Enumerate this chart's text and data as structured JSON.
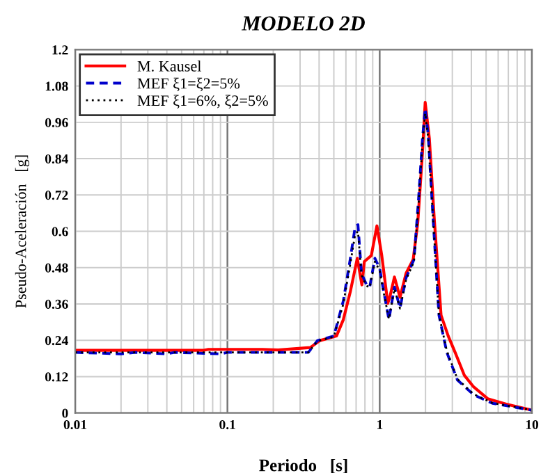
{
  "chart_data": {
    "type": "line",
    "title": "MODELO 2D",
    "xlabel": "Periodo   [s]",
    "ylabel": "Pseudo-Aceleración   [g]",
    "log": "x",
    "xlim": [
      0.01,
      10
    ],
    "xticks": [
      0.01,
      0.1,
      1,
      10
    ],
    "ylim": [
      0,
      1.2
    ],
    "yticks": [
      0,
      0.12,
      0.24,
      0.36,
      0.48,
      0.6,
      0.72,
      0.84,
      0.96,
      1.08,
      1.2
    ],
    "grid": true,
    "legend": "top left",
    "series": [
      {
        "name": "M. Kausel",
        "color": "#ff0000",
        "line_style": "solid",
        "x": [
          0.01,
          0.07,
          0.075,
          0.17,
          0.215,
          0.35,
          0.405,
          0.52,
          0.577,
          0.641,
          0.713,
          0.764,
          0.793,
          0.881,
          0.959,
          1.03,
          1.13,
          1.17,
          1.25,
          1.36,
          1.49,
          1.66,
          1.78,
          1.91,
          1.99,
          2.12,
          2.28,
          2.53,
          2.82,
          3.13,
          3.6,
          4.14,
          5.12,
          6.78,
          10
        ],
        "values": [
          0.207,
          0.207,
          0.21,
          0.21,
          0.208,
          0.216,
          0.239,
          0.254,
          0.308,
          0.4,
          0.511,
          0.423,
          0.5,
          0.52,
          0.618,
          0.523,
          0.362,
          0.386,
          0.449,
          0.382,
          0.461,
          0.507,
          0.63,
          0.86,
          1.026,
          0.906,
          0.645,
          0.323,
          0.254,
          0.2,
          0.124,
          0.086,
          0.047,
          0.029,
          0.009
        ]
      },
      {
        "name": "MEF ξ1=ξ2=5%",
        "color": "#0000cc",
        "line_style": "dashed",
        "x": [
          0.01,
          0.02,
          0.025,
          0.04,
          0.045,
          0.09,
          0.1,
          0.17,
          0.215,
          0.34,
          0.39,
          0.5,
          0.577,
          0.64,
          0.69,
          0.72,
          0.76,
          0.82,
          0.86,
          0.93,
          1.0,
          1.05,
          1.15,
          1.25,
          1.36,
          1.49,
          1.68,
          1.8,
          1.91,
          1.99,
          2.08,
          2.25,
          2.45,
          2.76,
          3.24,
          4.14,
          5.5,
          10
        ],
        "values": [
          0.2,
          0.195,
          0.2,
          0.195,
          0.2,
          0.195,
          0.2,
          0.2,
          0.2,
          0.2,
          0.239,
          0.254,
          0.37,
          0.507,
          0.615,
          0.622,
          0.461,
          0.423,
          0.416,
          0.511,
          0.477,
          0.416,
          0.308,
          0.416,
          0.346,
          0.446,
          0.507,
          0.707,
          0.906,
          1.006,
          0.921,
          0.63,
          0.323,
          0.2,
          0.109,
          0.06,
          0.032,
          0.009
        ]
      },
      {
        "name": "MEF ξ1=6%, ξ2=5%",
        "color": "#000000",
        "line_style": "dotted",
        "x": [
          0.01,
          0.1,
          0.215,
          0.34,
          0.39,
          0.5,
          0.577,
          0.64,
          0.69,
          0.72,
          0.76,
          0.82,
          0.86,
          0.93,
          1.0,
          1.05,
          1.15,
          1.25,
          1.36,
          1.49,
          1.68,
          1.8,
          1.91,
          1.99,
          2.08,
          2.25,
          2.45,
          2.76,
          3.24,
          4.14,
          5.5,
          10
        ],
        "values": [
          0.2,
          0.2,
          0.2,
          0.2,
          0.237,
          0.252,
          0.36,
          0.49,
          0.59,
          0.6,
          0.455,
          0.42,
          0.414,
          0.5,
          0.47,
          0.41,
          0.31,
          0.41,
          0.345,
          0.44,
          0.5,
          0.69,
          0.89,
          0.99,
          0.91,
          0.63,
          0.325,
          0.205,
          0.112,
          0.062,
          0.033,
          0.009
        ]
      }
    ]
  }
}
